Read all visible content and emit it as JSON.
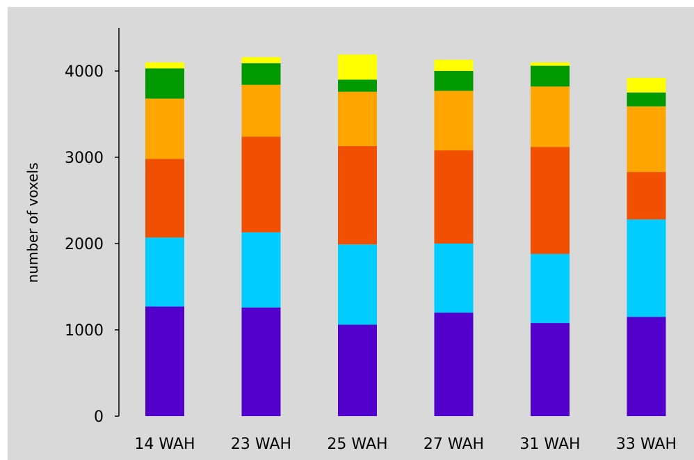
{
  "chart_data": {
    "type": "bar",
    "stacked": true,
    "title": "",
    "xlabel": "",
    "ylabel": "number of voxels",
    "ylim": [
      0,
      4500
    ],
    "yticks": [
      0,
      1000,
      2000,
      3000,
      4000
    ],
    "ytick_labels": [
      "0",
      "1000",
      "2000",
      "3000",
      "4000"
    ],
    "grid": false,
    "legend": "none",
    "categories": [
      "14 WAH",
      "23 WAH",
      "25 WAH",
      "27 WAH",
      "31 WAH",
      "33 WAH"
    ],
    "series": [
      {
        "color": "#5200cc",
        "values": [
          1270,
          1260,
          1060,
          1200,
          1080,
          1150
        ]
      },
      {
        "color": "#00ccff",
        "values": [
          800,
          870,
          930,
          800,
          800,
          1130
        ]
      },
      {
        "color": "#f05000",
        "values": [
          910,
          1110,
          1140,
          1080,
          1240,
          550
        ]
      },
      {
        "color": "#ffa500",
        "values": [
          700,
          600,
          630,
          690,
          700,
          760
        ]
      },
      {
        "color": "#009900",
        "values": [
          350,
          250,
          140,
          230,
          240,
          160
        ]
      },
      {
        "color": "#ffff00",
        "values": [
          70,
          70,
          290,
          130,
          40,
          170
        ]
      }
    ]
  }
}
